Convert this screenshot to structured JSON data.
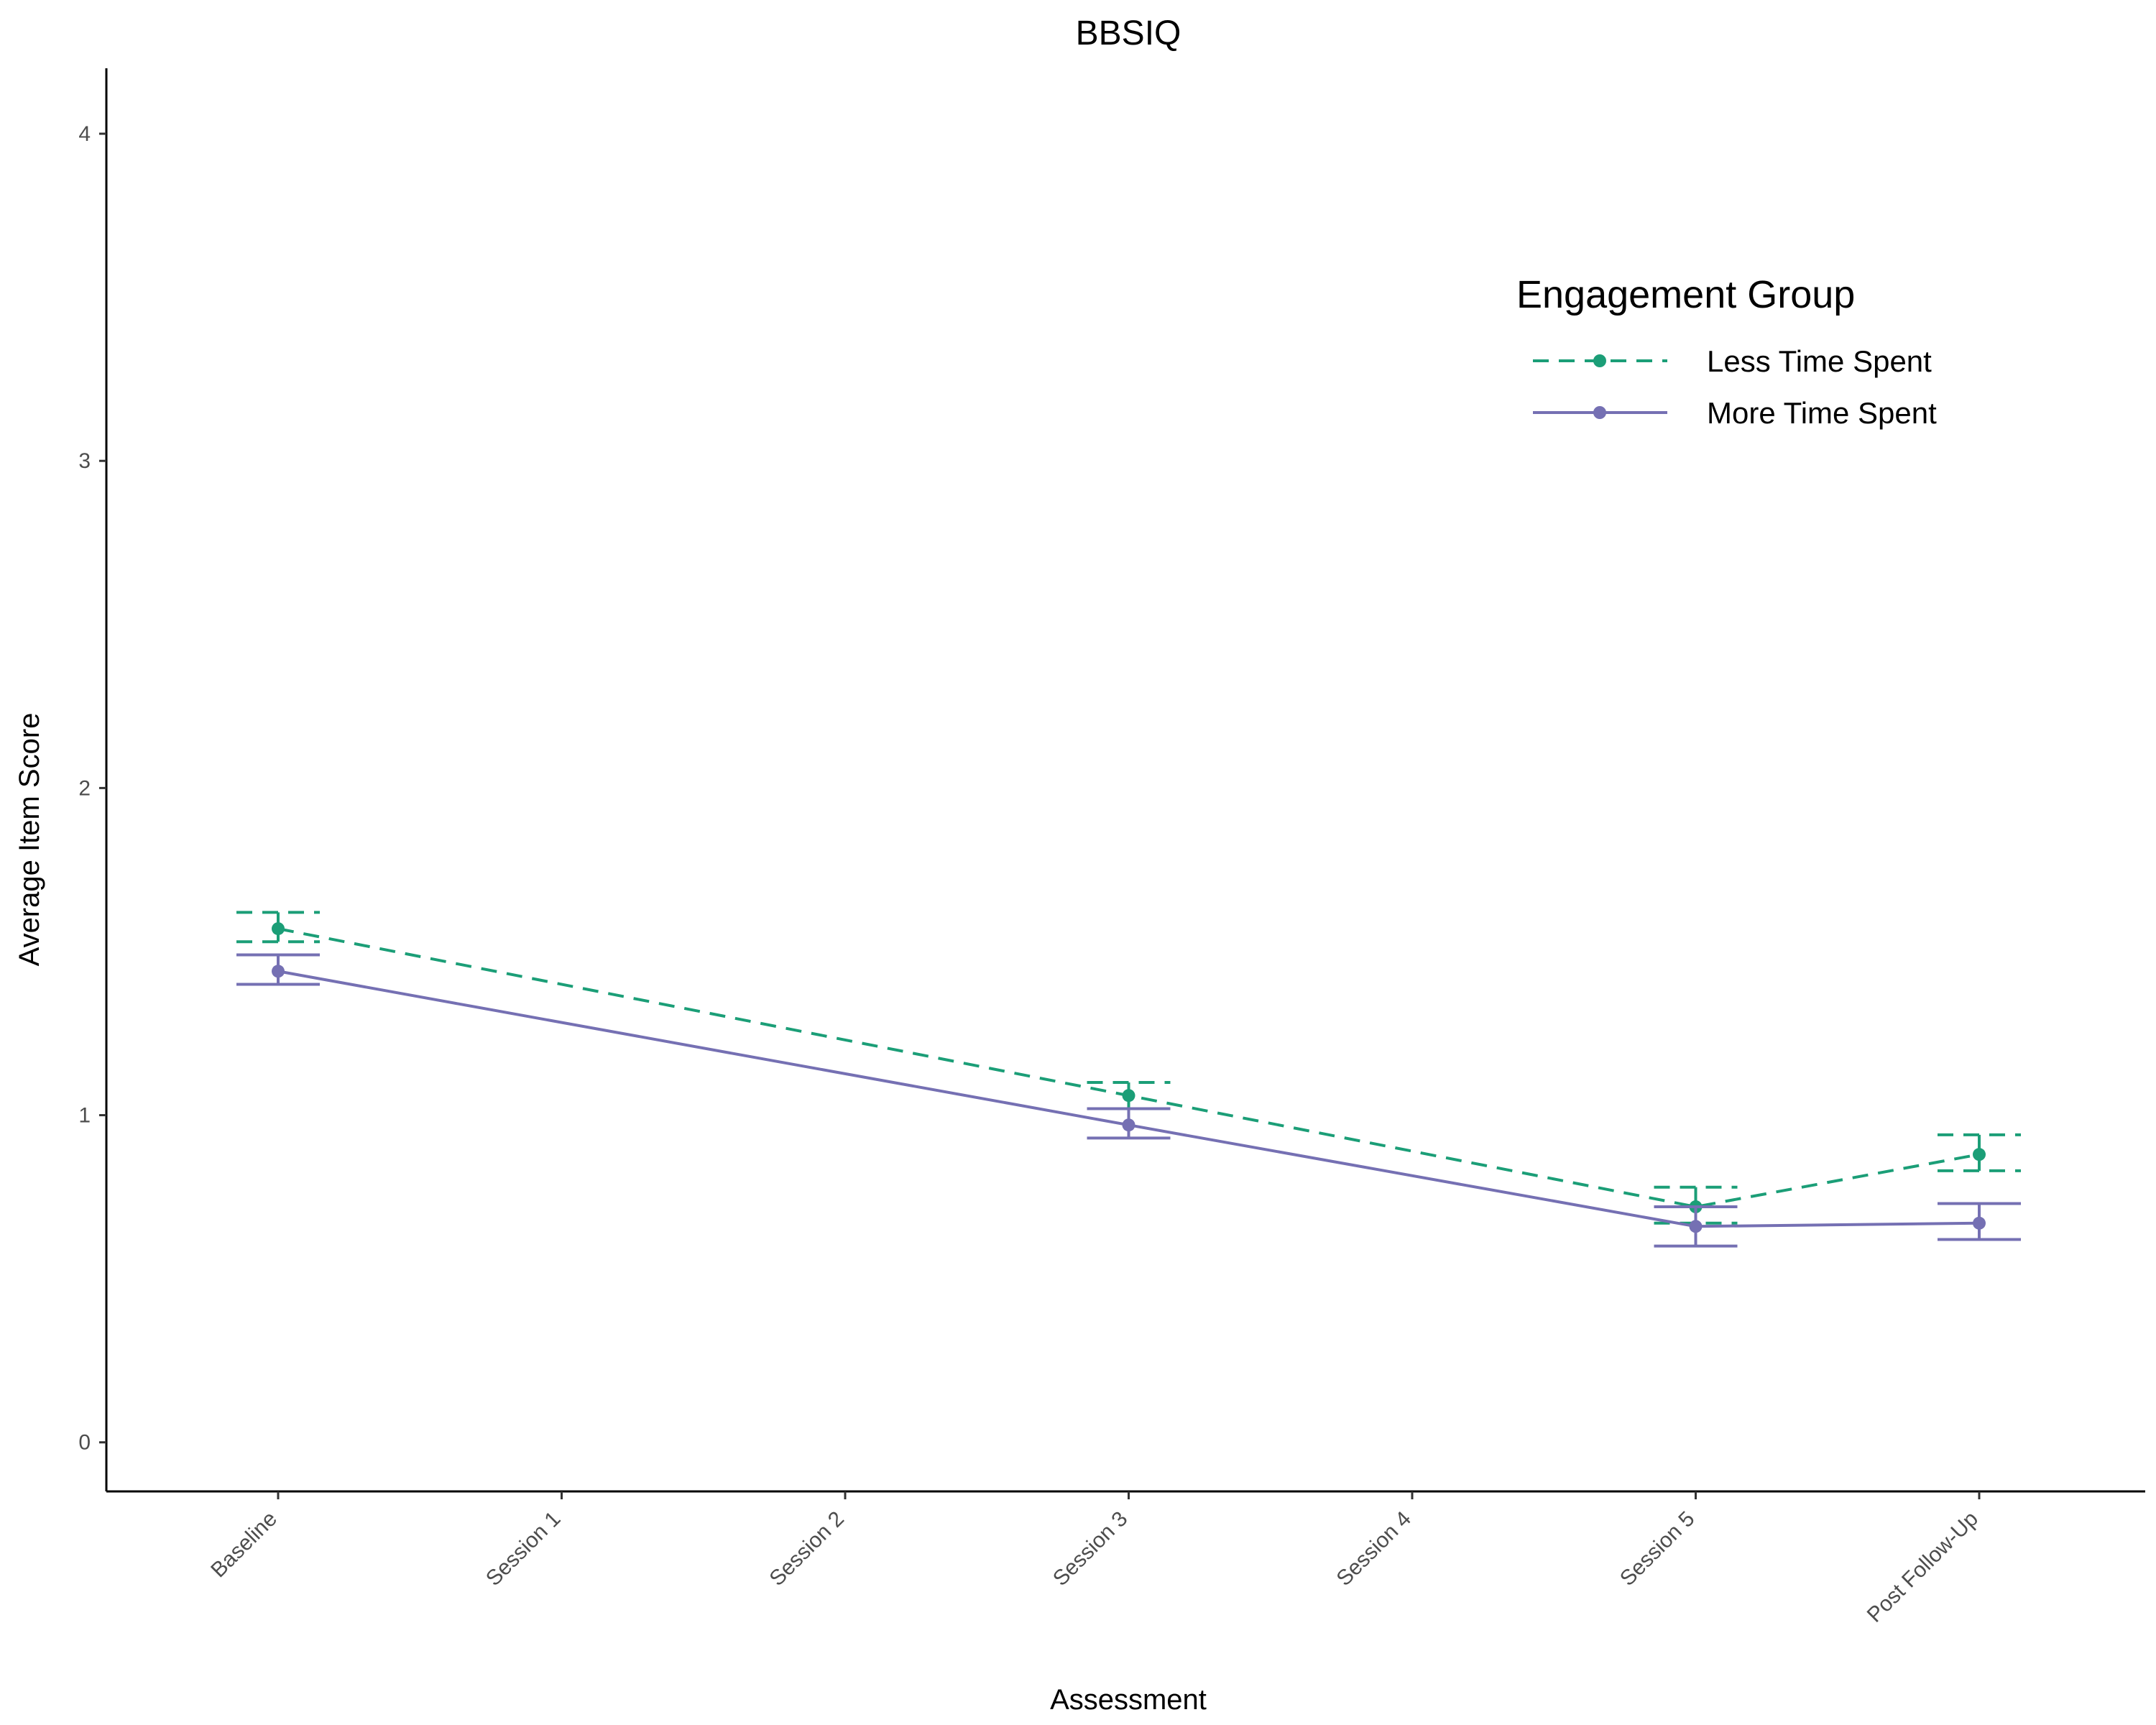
{
  "chart_data": {
    "type": "line",
    "title": "BBSIQ",
    "xlabel": "Assessment",
    "ylabel": "Average Item Score",
    "categories": [
      "Baseline",
      "Session 1",
      "Session 2",
      "Session 3",
      "Session 4",
      "Session 5",
      "Post Follow-Up"
    ],
    "ylim": [
      -0.15,
      4.2
    ],
    "yticks": [
      0,
      1,
      2,
      3,
      4
    ],
    "grid": false,
    "legend": {
      "title": "Engagement Group",
      "position": "top-right"
    },
    "series": [
      {
        "name": "Less Time Spent",
        "color": "#1b9e77",
        "line_style": "dashed",
        "points": [
          {
            "category": "Baseline",
            "y": 1.57,
            "lower": 1.53,
            "upper": 1.62
          },
          {
            "category": "Session 3",
            "y": 1.06,
            "lower": 1.02,
            "upper": 1.1
          },
          {
            "category": "Session 5",
            "y": 0.72,
            "lower": 0.67,
            "upper": 0.78
          },
          {
            "category": "Post Follow-Up",
            "y": 0.88,
            "lower": 0.83,
            "upper": 0.94
          }
        ]
      },
      {
        "name": "More Time Spent",
        "color": "#7570b3",
        "line_style": "solid",
        "points": [
          {
            "category": "Baseline",
            "y": 1.44,
            "lower": 1.4,
            "upper": 1.49
          },
          {
            "category": "Session 3",
            "y": 0.97,
            "lower": 0.93,
            "upper": 1.02
          },
          {
            "category": "Session 5",
            "y": 0.66,
            "lower": 0.6,
            "upper": 0.72
          },
          {
            "category": "Post Follow-Up",
            "y": 0.67,
            "lower": 0.62,
            "upper": 0.73
          }
        ]
      }
    ]
  }
}
